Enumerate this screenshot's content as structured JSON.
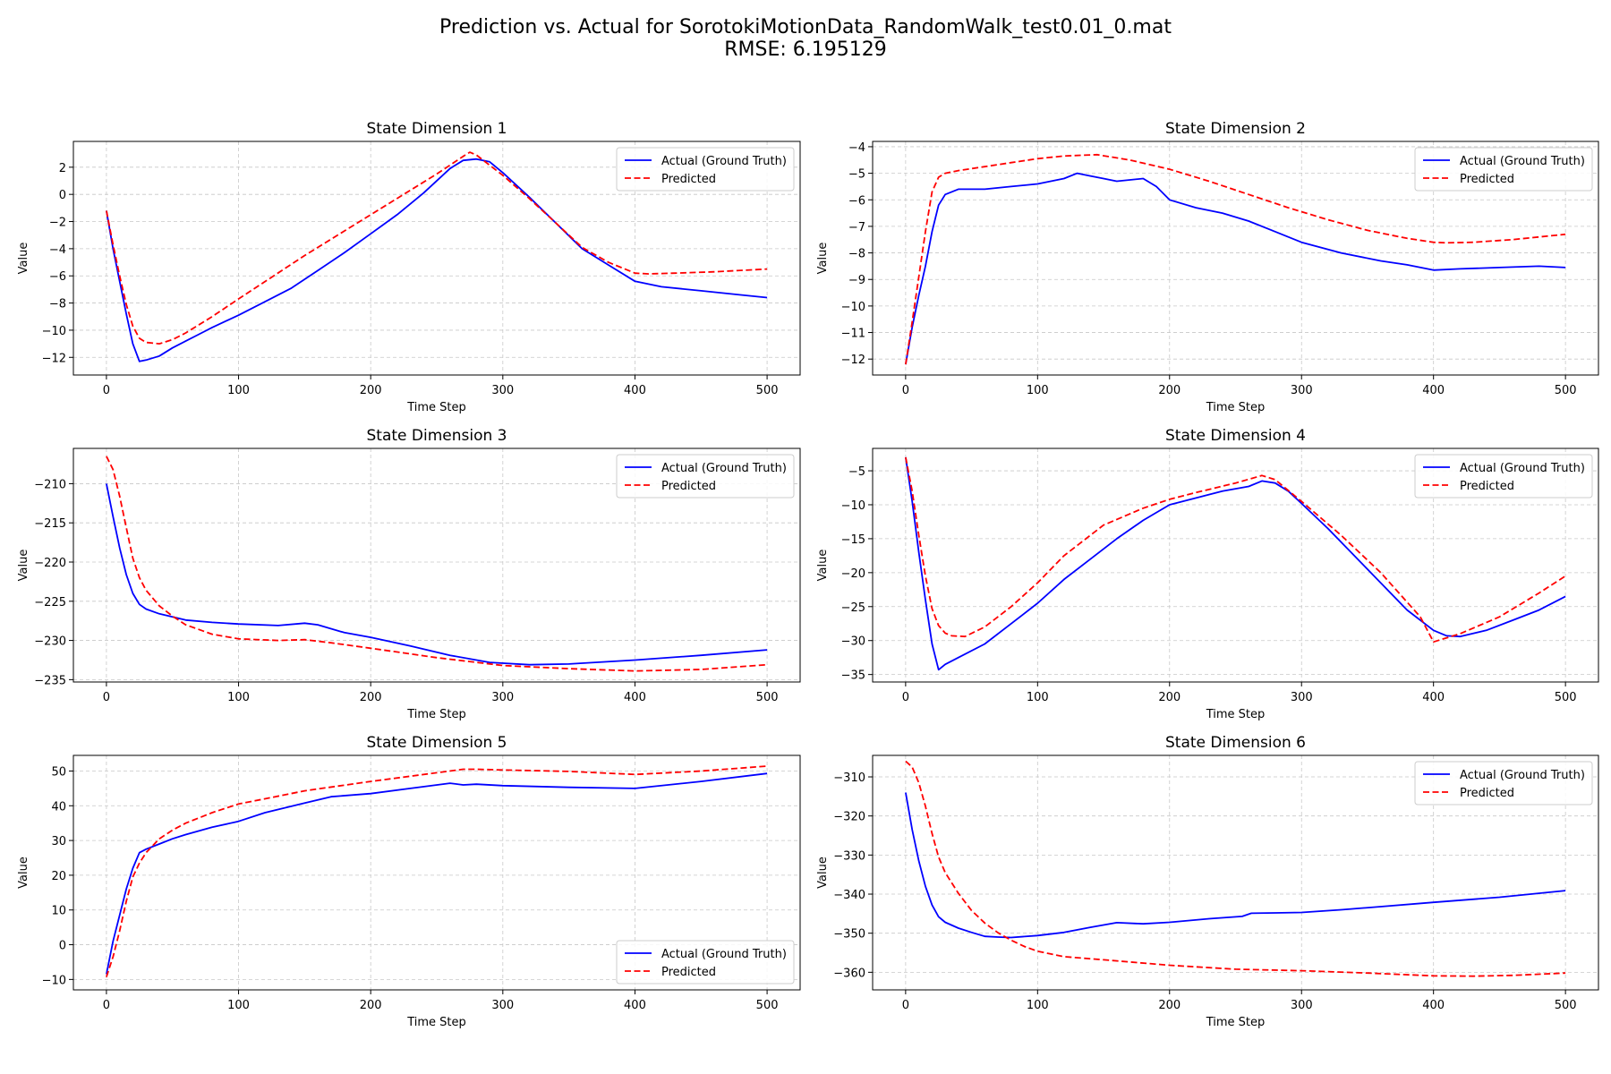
{
  "figure": {
    "title_line1": "Prediction vs. Actual for SorotokiMotionData_RandomWalk_test0.01_0.mat",
    "title_line2": "RMSE: 6.195129"
  },
  "colors": {
    "actual": "#0000ff",
    "predicted": "#ff0000",
    "grid": "#c8c8c8",
    "axis": "#000000"
  },
  "chart_data": [
    {
      "type": "line",
      "title": "State Dimension 1",
      "xlabel": "Time Step",
      "ylabel": "Value",
      "xlim": [
        -25,
        525
      ],
      "ylim": [
        -13.3,
        3.9
      ],
      "xticks": [
        0,
        100,
        200,
        300,
        400,
        500
      ],
      "yticks": [
        -12,
        -10,
        -8,
        -6,
        -4,
        -2,
        0,
        2
      ],
      "grid": true,
      "legend_loc": "upper right",
      "series": [
        {
          "name": "Actual (Ground Truth)",
          "style": "solid",
          "x": [
            0,
            5,
            10,
            15,
            20,
            25,
            30,
            40,
            50,
            60,
            70,
            80,
            100,
            120,
            140,
            160,
            180,
            200,
            220,
            240,
            260,
            270,
            280,
            290,
            300,
            320,
            340,
            360,
            380,
            400,
            420,
            450,
            480,
            500
          ],
          "y": [
            -1.2,
            -4.0,
            -6.4,
            -8.8,
            -11.0,
            -12.3,
            -12.2,
            -11.9,
            -11.3,
            -10.8,
            -10.3,
            -9.8,
            -8.9,
            -7.9,
            -6.9,
            -5.6,
            -4.3,
            -2.9,
            -1.5,
            0.1,
            1.9,
            2.5,
            2.6,
            2.4,
            1.6,
            -0.2,
            -2.1,
            -4.0,
            -5.2,
            -6.4,
            -6.8,
            -7.1,
            -7.4,
            -7.6
          ]
        },
        {
          "name": "Predicted",
          "style": "dashed",
          "x": [
            0,
            5,
            10,
            15,
            20,
            25,
            30,
            40,
            50,
            60,
            80,
            100,
            150,
            200,
            250,
            270,
            275,
            280,
            300,
            320,
            340,
            360,
            380,
            400,
            410,
            430,
            460,
            500
          ],
          "y": [
            -1.2,
            -3.7,
            -6.0,
            -8.1,
            -9.7,
            -10.6,
            -10.9,
            -11.0,
            -10.7,
            -10.2,
            -9.0,
            -7.7,
            -4.5,
            -1.5,
            1.5,
            2.8,
            3.1,
            2.9,
            1.4,
            -0.3,
            -2.1,
            -3.9,
            -5.0,
            -5.8,
            -5.85,
            -5.8,
            -5.7,
            -5.5
          ]
        }
      ]
    },
    {
      "type": "line",
      "title": "State Dimension 2",
      "xlabel": "Time Step",
      "ylabel": "Value",
      "xlim": [
        -25,
        525
      ],
      "ylim": [
        -12.6,
        -3.8
      ],
      "xticks": [
        0,
        100,
        200,
        300,
        400,
        500
      ],
      "yticks": [
        -12,
        -11,
        -10,
        -9,
        -8,
        -7,
        -6,
        -5,
        -4
      ],
      "grid": true,
      "legend_loc": "upper right",
      "series": [
        {
          "name": "Actual (Ground Truth)",
          "style": "solid",
          "x": [
            0,
            5,
            10,
            15,
            20,
            25,
            30,
            40,
            50,
            60,
            80,
            100,
            120,
            130,
            140,
            150,
            160,
            180,
            190,
            200,
            220,
            240,
            260,
            280,
            300,
            330,
            360,
            380,
            400,
            420,
            450,
            480,
            500
          ],
          "y": [
            -12.2,
            -10.8,
            -9.6,
            -8.5,
            -7.2,
            -6.2,
            -5.8,
            -5.6,
            -5.6,
            -5.6,
            -5.5,
            -5.4,
            -5.2,
            -5.0,
            -5.1,
            -5.2,
            -5.3,
            -5.2,
            -5.5,
            -6.0,
            -6.3,
            -6.5,
            -6.8,
            -7.2,
            -7.6,
            -8.0,
            -8.3,
            -8.45,
            -8.65,
            -8.6,
            -8.55,
            -8.5,
            -8.55
          ]
        },
        {
          "name": "Predicted",
          "style": "dashed",
          "x": [
            0,
            5,
            10,
            15,
            20,
            25,
            30,
            40,
            60,
            80,
            100,
            120,
            145,
            170,
            200,
            230,
            260,
            290,
            320,
            350,
            380,
            400,
            410,
            430,
            460,
            500
          ],
          "y": [
            -12.2,
            -10.6,
            -8.9,
            -7.2,
            -5.7,
            -5.15,
            -5.0,
            -4.9,
            -4.75,
            -4.6,
            -4.45,
            -4.35,
            -4.3,
            -4.5,
            -4.85,
            -5.3,
            -5.8,
            -6.3,
            -6.75,
            -7.15,
            -7.45,
            -7.6,
            -7.62,
            -7.6,
            -7.5,
            -7.3
          ]
        }
      ]
    },
    {
      "type": "line",
      "title": "State Dimension 3",
      "xlabel": "Time Step",
      "ylabel": "Value",
      "xlim": [
        -25,
        525
      ],
      "ylim": [
        -235.3,
        -205.5
      ],
      "xticks": [
        0,
        100,
        200,
        300,
        400,
        500
      ],
      "yticks": [
        -235,
        -230,
        -225,
        -220,
        -215,
        -210
      ],
      "grid": true,
      "legend_loc": "upper right",
      "series": [
        {
          "name": "Actual (Ground Truth)",
          "style": "solid",
          "x": [
            0,
            5,
            10,
            15,
            20,
            25,
            30,
            40,
            60,
            80,
            100,
            130,
            150,
            160,
            180,
            200,
            230,
            260,
            290,
            320,
            350,
            400,
            450,
            500
          ],
          "y": [
            -210,
            -214.2,
            -218.2,
            -221.6,
            -224.0,
            -225.4,
            -226.0,
            -226.6,
            -227.4,
            -227.7,
            -227.9,
            -228.1,
            -227.8,
            -228.0,
            -229.0,
            -229.6,
            -230.7,
            -231.9,
            -232.8,
            -233.1,
            -233.0,
            -232.5,
            -231.9,
            -231.2
          ]
        },
        {
          "name": "Predicted",
          "style": "dashed",
          "x": [
            0,
            5,
            10,
            15,
            20,
            25,
            30,
            40,
            50,
            60,
            80,
            100,
            130,
            150,
            170,
            200,
            250,
            300,
            350,
            400,
            450,
            500
          ],
          "y": [
            -206.5,
            -208.2,
            -211.6,
            -215.6,
            -219.5,
            -222.0,
            -223.6,
            -225.6,
            -226.9,
            -228.0,
            -229.2,
            -229.8,
            -230.0,
            -229.9,
            -230.3,
            -231.0,
            -232.2,
            -233.2,
            -233.6,
            -233.9,
            -233.7,
            -233.1
          ]
        }
      ]
    },
    {
      "type": "line",
      "title": "State Dimension 4",
      "xlabel": "Time Step",
      "ylabel": "Value",
      "xlim": [
        -25,
        525
      ],
      "ylim": [
        -36.1,
        -1.7
      ],
      "xticks": [
        0,
        100,
        200,
        300,
        400,
        500
      ],
      "yticks": [
        -35,
        -30,
        -25,
        -20,
        -15,
        -10,
        -5
      ],
      "grid": true,
      "legend_loc": "upper right",
      "series": [
        {
          "name": "Actual (Ground Truth)",
          "style": "solid",
          "x": [
            0,
            5,
            10,
            15,
            20,
            25,
            30,
            40,
            60,
            80,
            100,
            120,
            140,
            160,
            180,
            200,
            220,
            240,
            260,
            270,
            280,
            290,
            300,
            320,
            340,
            360,
            380,
            400,
            410,
            420,
            440,
            460,
            480,
            500
          ],
          "y": [
            -3.0,
            -9.5,
            -17.0,
            -24.0,
            -30.5,
            -34.3,
            -33.5,
            -32.5,
            -30.5,
            -27.5,
            -24.5,
            -21.0,
            -18.0,
            -15.0,
            -12.3,
            -10.0,
            -9.0,
            -8.0,
            -7.3,
            -6.5,
            -6.8,
            -8.0,
            -9.8,
            -13.5,
            -17.5,
            -21.5,
            -25.5,
            -28.5,
            -29.3,
            -29.4,
            -28.5,
            -27.0,
            -25.5,
            -23.5
          ]
        },
        {
          "name": "Predicted",
          "style": "dashed",
          "x": [
            0,
            5,
            10,
            15,
            20,
            25,
            30,
            35,
            45,
            60,
            80,
            100,
            120,
            150,
            180,
            200,
            220,
            250,
            270,
            280,
            300,
            330,
            360,
            390,
            400,
            420,
            450,
            480,
            500
          ],
          "y": [
            -3.0,
            -8.0,
            -14.5,
            -20.5,
            -25.3,
            -27.8,
            -28.9,
            -29.3,
            -29.4,
            -28.0,
            -25.0,
            -21.5,
            -17.5,
            -13.0,
            -10.5,
            -9.2,
            -8.2,
            -6.8,
            -5.7,
            -6.3,
            -9.5,
            -14.5,
            -20.0,
            -26.5,
            -30.2,
            -29.0,
            -26.5,
            -23.0,
            -20.5
          ]
        }
      ]
    },
    {
      "type": "line",
      "title": "State Dimension 5",
      "xlabel": "Time Step",
      "ylabel": "Value",
      "xlim": [
        -25,
        525
      ],
      "ylim": [
        -13.0,
        54.5
      ],
      "xticks": [
        0,
        100,
        200,
        300,
        400,
        500
      ],
      "yticks": [
        -10,
        0,
        10,
        20,
        30,
        40,
        50
      ],
      "grid": true,
      "legend_loc": "lower right",
      "series": [
        {
          "name": "Actual (Ground Truth)",
          "style": "solid",
          "x": [
            0,
            5,
            10,
            15,
            20,
            25,
            30,
            40,
            50,
            60,
            80,
            100,
            120,
            150,
            170,
            200,
            230,
            260,
            270,
            280,
            300,
            350,
            400,
            450,
            500
          ],
          "y": [
            -8.5,
            1.0,
            8.5,
            16.0,
            22.0,
            26.5,
            27.5,
            29.0,
            30.5,
            31.7,
            33.8,
            35.5,
            38.0,
            40.8,
            42.6,
            43.5,
            45.0,
            46.5,
            46.0,
            46.2,
            45.8,
            45.3,
            45.0,
            47.0,
            49.3
          ]
        },
        {
          "name": "Predicted",
          "style": "dashed",
          "x": [
            0,
            5,
            10,
            15,
            20,
            25,
            30,
            40,
            50,
            60,
            80,
            100,
            120,
            150,
            200,
            250,
            270,
            280,
            300,
            350,
            400,
            450,
            500
          ],
          "y": [
            -9.3,
            -3.5,
            4.0,
            12.5,
            19.5,
            23.5,
            26.5,
            30.5,
            33.0,
            35.0,
            38.0,
            40.5,
            42.0,
            44.3,
            47.0,
            49.5,
            50.5,
            50.5,
            50.3,
            49.9,
            49.0,
            50.0,
            51.4
          ]
        }
      ]
    },
    {
      "type": "line",
      "title": "State Dimension 6",
      "xlabel": "Time Step",
      "ylabel": "Value",
      "xlim": [
        -25,
        525
      ],
      "ylim": [
        -364.5,
        -304.5
      ],
      "xticks": [
        0,
        100,
        200,
        300,
        400,
        500
      ],
      "yticks": [
        -360,
        -350,
        -340,
        -330,
        -320,
        -310
      ],
      "grid": true,
      "legend_loc": "upper right",
      "series": [
        {
          "name": "Actual (Ground Truth)",
          "style": "solid",
          "x": [
            0,
            5,
            10,
            15,
            20,
            25,
            30,
            40,
            50,
            60,
            70,
            80,
            100,
            120,
            140,
            160,
            180,
            200,
            230,
            255,
            262,
            280,
            300,
            330,
            360,
            400,
            450,
            500
          ],
          "y": [
            -314.0,
            -323.5,
            -331.5,
            -338.0,
            -342.8,
            -345.8,
            -347.2,
            -348.7,
            -349.8,
            -350.8,
            -351.0,
            -351.1,
            -350.6,
            -349.8,
            -348.5,
            -347.3,
            -347.6,
            -347.2,
            -346.3,
            -345.7,
            -344.9,
            -344.8,
            -344.7,
            -344.0,
            -343.2,
            -342.1,
            -340.8,
            -339.1
          ]
        },
        {
          "name": "Predicted",
          "style": "dashed",
          "x": [
            0,
            5,
            10,
            15,
            20,
            25,
            30,
            40,
            50,
            60,
            70,
            80,
            90,
            100,
            120,
            150,
            200,
            250,
            300,
            350,
            400,
            430,
            460,
            500
          ],
          "y": [
            -306.0,
            -307.5,
            -311.5,
            -317.5,
            -324.5,
            -330.5,
            -334.5,
            -339.8,
            -344.2,
            -347.4,
            -349.9,
            -351.8,
            -353.4,
            -354.6,
            -356.0,
            -356.8,
            -358.2,
            -359.2,
            -359.6,
            -360.2,
            -360.9,
            -361.0,
            -360.8,
            -360.2
          ]
        }
      ]
    }
  ]
}
